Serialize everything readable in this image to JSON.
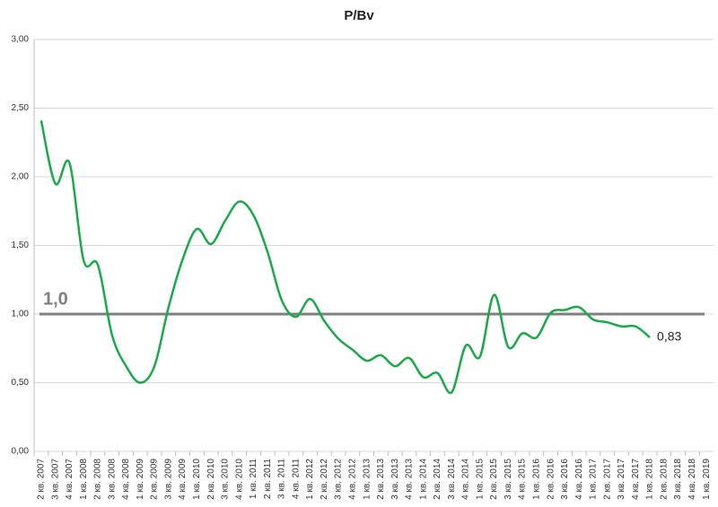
{
  "chart_data": {
    "type": "line",
    "title": "P/Bv",
    "categories": [
      "2 кв. 2007",
      "3 кв. 2007",
      "4 кв. 2007",
      "1 кв. 2008",
      "2 кв. 2008",
      "3 кв. 2008",
      "4 кв. 2008",
      "1 кв. 2009",
      "2 кв. 2009",
      "3 кв. 2009",
      "4 кв. 2009",
      "1 кв. 2010",
      "2 кв. 2010",
      "3 кв. 2010",
      "4 кв. 2010",
      "1 кв. 2011",
      "2 кв. 2011",
      "3 кв. 2011",
      "4 кв. 2011",
      "1 кв. 2012",
      "2 кв. 2012",
      "3 кв. 2012",
      "4 кв. 2012",
      "1 кв. 2013",
      "2 кв. 2013",
      "3 кв. 2013",
      "4 кв. 2013",
      "1 кв. 2014",
      "2 кв. 2014",
      "3 кв. 2014",
      "4 кв. 2014",
      "1 кв. 2015",
      "2 кв. 2015",
      "3 кв. 2015",
      "4 кв. 2015",
      "1 кв. 2016",
      "2 кв. 2016",
      "3 кв. 2016",
      "4 кв. 2016",
      "1 кв. 2017",
      "2 кв. 2017",
      "3 кв. 2017",
      "4 кв. 2017",
      "1 кв. 2018",
      "2 кв. 2018",
      "3 кв. 2018",
      "4 кв. 2018",
      "1 кв. 2019"
    ],
    "series": [
      {
        "name": "P/Bv",
        "color": "#1aaa4a",
        "values": [
          2.41,
          1.95,
          2.1,
          1.39,
          1.36,
          0.85,
          0.62,
          0.5,
          0.62,
          1.05,
          1.4,
          1.62,
          1.51,
          1.68,
          1.82,
          1.72,
          1.45,
          1.1,
          0.98,
          1.11,
          0.95,
          0.82,
          0.74,
          0.66,
          0.7,
          0.62,
          0.68,
          0.54,
          0.57,
          0.43,
          0.77,
          0.69,
          1.14,
          0.76,
          0.86,
          0.83,
          1.01,
          1.03,
          1.05,
          0.96,
          0.94,
          0.91,
          0.91,
          0.83,
          null,
          null,
          null,
          null
        ],
        "value_labels": [
          null,
          null,
          null,
          null,
          null,
          null,
          null,
          null,
          null,
          null,
          null,
          null,
          null,
          null,
          null,
          null,
          null,
          null,
          null,
          null,
          null,
          null,
          null,
          null,
          null,
          null,
          null,
          null,
          null,
          null,
          null,
          null,
          null,
          null,
          null,
          null,
          null,
          null,
          null,
          null,
          null,
          null,
          null,
          "0,83",
          null,
          null,
          null,
          null
        ]
      }
    ],
    "reference_line": {
      "value": 1,
      "label": "1,0",
      "color": "#7f7f7f"
    },
    "ylim": [
      0,
      3
    ],
    "yticks": [
      {
        "value": 0,
        "label": "0,00"
      },
      {
        "value": 0.5,
        "label": "0,50"
      },
      {
        "value": 1,
        "label": "1,00"
      },
      {
        "value": 1.5,
        "label": "1,50"
      },
      {
        "value": 2,
        "label": "2,00"
      },
      {
        "value": 2.5,
        "label": "2,50"
      },
      {
        "value": 3,
        "label": "3,00"
      }
    ],
    "grid": true
  }
}
